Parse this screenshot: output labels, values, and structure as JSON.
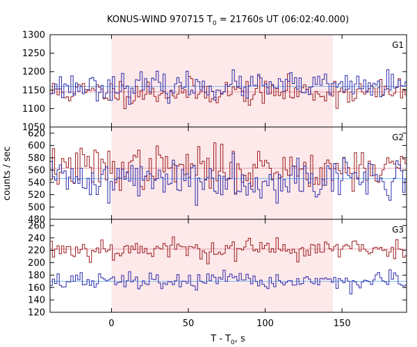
{
  "chart_data": {
    "type": "line",
    "title": "KONUS-WIND 970715 T0 = 21760s UT (06:02:40.000)",
    "title_main": "KONUS-WIND 970715 T",
    "title_sub": "0",
    "title_rest": " = 21760s UT (06:02:40.000)",
    "xlabel_main": "T - T",
    "xlabel_sub": "0",
    "xlabel_rest": ", s",
    "ylabel": "counts / sec",
    "xlim": [
      -40,
      192
    ],
    "x_ticks": [
      0,
      50,
      100,
      150
    ],
    "x_tick_labels": [
      "0",
      "50",
      "100",
      "150"
    ],
    "bin_width_s": 1.5,
    "highlight_interval": [
      0,
      144
    ],
    "highlight_color": "#fde8ea",
    "series_colors": {
      "red": "#9b1b1b",
      "blue": "#2a2aa8",
      "mean_red": "#e5a3b0",
      "mean_blue": "#7ab8f0"
    },
    "panels": [
      {
        "label": "G1",
        "ylim": [
          1050,
          1300
        ],
        "y_ticks": [
          1050,
          1100,
          1150,
          1200,
          1250,
          1300
        ],
        "series": [
          {
            "color_key": "red",
            "mean": 1145,
            "sigma": 18,
            "seed": 11
          },
          {
            "color_key": "blue",
            "mean": 1160,
            "sigma": 18,
            "seed": 23
          }
        ]
      },
      {
        "label": "G2",
        "ylim": [
          480,
          630
        ],
        "y_ticks": [
          480,
          500,
          520,
          540,
          560,
          580,
          600,
          620
        ],
        "series": [
          {
            "color_key": "red",
            "mean": 563,
            "sigma": 17,
            "seed": 37
          },
          {
            "color_key": "blue",
            "mean": 546,
            "sigma": 17,
            "seed": 41
          }
        ]
      },
      {
        "label": "G3",
        "ylim": [
          120,
          270
        ],
        "y_ticks": [
          120,
          140,
          160,
          180,
          200,
          220,
          240,
          260
        ],
        "series": [
          {
            "color_key": "red",
            "mean": 222,
            "sigma": 9,
            "seed": 53
          },
          {
            "color_key": "blue",
            "mean": 170,
            "sigma": 7,
            "seed": 67
          }
        ]
      }
    ]
  }
}
